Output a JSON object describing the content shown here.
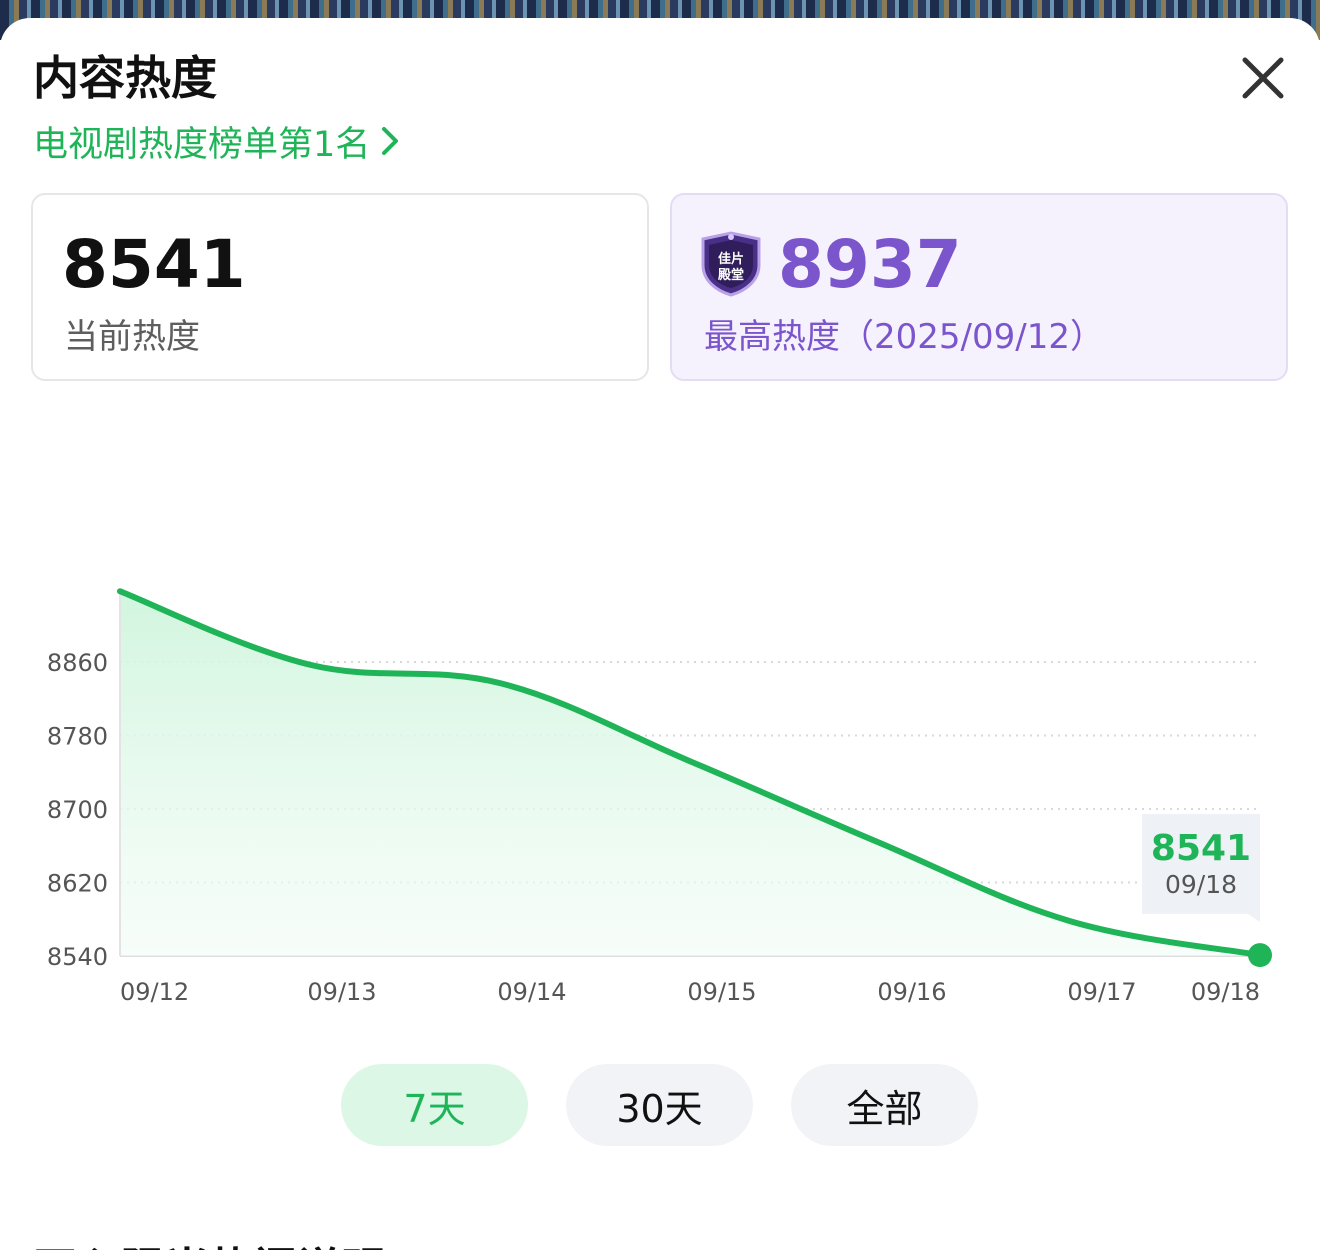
{
  "header": {
    "title": "内容热度",
    "rank_link": "电视剧热度榜单第1名"
  },
  "cards": {
    "current": {
      "value": "8541",
      "label": "当前热度"
    },
    "max": {
      "value": "8937",
      "label": "最高热度（2025/09/12）",
      "badge_text": "佳片殿堂",
      "badge_color": "#5a3d9e"
    }
  },
  "colors": {
    "accent": "#1fb457",
    "purple": "#7b55cc"
  },
  "icons": {
    "close": "close-icon",
    "chevron": "chevron-right-icon",
    "badge": "shield-badge-icon"
  },
  "chart_data": {
    "type": "area",
    "x": [
      "09/12",
      "09/13",
      "09/14",
      "09/15",
      "09/16",
      "09/17",
      "09/18"
    ],
    "values": [
      8937,
      8857,
      8837,
      8752,
      8663,
      8578,
      8541
    ],
    "yticks": [
      8540,
      8620,
      8700,
      8780,
      8860
    ],
    "ylim": [
      8540,
      8937
    ],
    "grid": true,
    "tooltip": {
      "value": "8541",
      "date": "09/18"
    }
  },
  "range_tabs": [
    {
      "label": "7天",
      "active": true
    },
    {
      "label": "30天",
      "active": false
    },
    {
      "label": "全部",
      "active": false
    }
  ],
  "next_section": {
    "title": "开心陨当热门说明"
  }
}
